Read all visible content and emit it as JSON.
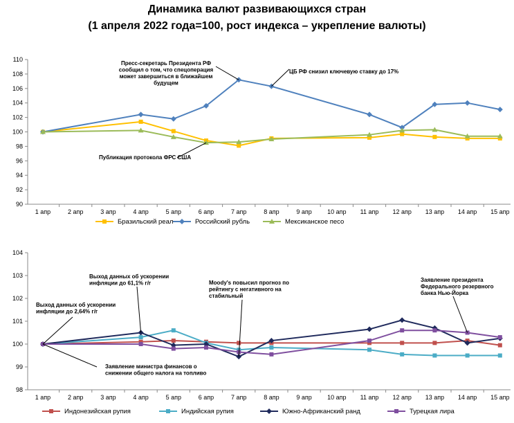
{
  "title_line1": "Динамика валют развивающихся стран",
  "title_line2": "(1 апреля 2022 года=100, рост индекса – укрепление валюты)",
  "chart_data": [
    {
      "type": "line",
      "x": [
        "1 апр",
        "2 апр",
        "3 апр",
        "4 апр",
        "5 апр",
        "6 апр",
        "7 апр",
        "8 апр",
        "9 апр",
        "10 апр",
        "11 апр",
        "12 апр",
        "13 апр",
        "14 апр",
        "15 апр"
      ],
      "ylim": [
        90,
        110
      ],
      "yticks": [
        90,
        92,
        94,
        96,
        98,
        100,
        102,
        104,
        106,
        108,
        110
      ],
      "legend_position": "bottom",
      "grid": false,
      "series": [
        {
          "name": "Бразильский реал",
          "color": "#FFC000",
          "marker": "square",
          "values": [
            100,
            null,
            null,
            101.4,
            100.1,
            98.8,
            98.1,
            99.1,
            null,
            null,
            99.2,
            99.7,
            99.3,
            99.1,
            99.1
          ]
        },
        {
          "name": "Российский рубль",
          "color": "#4F81BD",
          "marker": "diamond",
          "values": [
            100,
            null,
            null,
            102.4,
            101.8,
            103.6,
            107.2,
            106.3,
            null,
            null,
            102.4,
            100.6,
            103.8,
            104.0,
            103.1
          ]
        },
        {
          "name": "Мексиканское песо",
          "color": "#9BBB59",
          "marker": "triangle",
          "values": [
            100,
            null,
            null,
            100.2,
            99.3,
            98.5,
            98.6,
            99.0,
            null,
            null,
            99.6,
            100.2,
            100.3,
            99.4,
            99.4
          ]
        }
      ],
      "annotations": [
        {
          "lines": [
            "Пресс-секретарь Президента РФ",
            "сообщил о том, что спецоперация",
            "может завершиться в ближайшем",
            "будущем"
          ],
          "x": "7 апр",
          "y": 107.2
        },
        {
          "lines": [
            "ЦБ РФ снизил ключевую ставку до 17%"
          ],
          "x": "8 апр",
          "y": 106.3
        },
        {
          "lines": [
            "Публикация протокола ФРС США"
          ],
          "x": "6 апр",
          "y": 98.5
        }
      ]
    },
    {
      "type": "line",
      "x": [
        "1 апр",
        "2 апр",
        "3 апр",
        "4 апр",
        "5 апр",
        "6 апр",
        "7 апр",
        "8 апр",
        "9 апр",
        "10 апр",
        "11 апр",
        "12 апр",
        "13 апр",
        "14 апр",
        "15 апр"
      ],
      "ylim": [
        98,
        104
      ],
      "yticks": [
        98,
        99,
        100,
        101,
        102,
        103,
        104
      ],
      "legend_position": "bottom",
      "grid": false,
      "series": [
        {
          "name": "Индонезийская рупия",
          "color": "#C0504D",
          "marker": "square",
          "values": [
            100,
            null,
            null,
            100.1,
            100.15,
            100.1,
            100.05,
            100.05,
            null,
            null,
            100.05,
            100.05,
            100.05,
            100.15,
            99.95
          ]
        },
        {
          "name": "Индийская рупия",
          "color": "#4BACC6",
          "marker": "square",
          "values": [
            100,
            null,
            null,
            100.3,
            100.6,
            100.05,
            99.75,
            99.85,
            null,
            null,
            99.75,
            99.55,
            99.5,
            99.5,
            99.5
          ]
        },
        {
          "name": "Южно-Африканский ранд",
          "color": "#1F2A5C",
          "marker": "diamond",
          "values": [
            100,
            null,
            null,
            100.5,
            99.95,
            100.0,
            99.45,
            100.15,
            null,
            null,
            100.65,
            101.05,
            100.7,
            100.05,
            100.25
          ]
        },
        {
          "name": "Турецкая лира",
          "color": "#7F4F9F",
          "marker": "square",
          "values": [
            100,
            null,
            null,
            100.0,
            99.8,
            99.85,
            99.65,
            99.55,
            null,
            null,
            100.15,
            100.6,
            100.6,
            100.5,
            100.3
          ]
        }
      ],
      "annotations": [
        {
          "lines": [
            "Выход данных об ускорении",
            "инфляции до 2,64% г/г"
          ],
          "x": "1 апр",
          "y": 100
        },
        {
          "lines": [
            "Выход данных об ускорении",
            "инфляции до 61,1% г/г"
          ],
          "x": "4 апр",
          "y": 100.5
        },
        {
          "lines": [
            "Moody's повысил прогноз по",
            "рейтингу с негативного на",
            "стабильный"
          ],
          "x": "7 апр",
          "y": 99.45
        },
        {
          "lines": [
            "Заявление министра финансов о",
            "снижении общего налога на топливо"
          ],
          "x": "1 апр",
          "y": 100
        },
        {
          "lines": [
            "Заявление президента",
            "Федерального резервного",
            "банка Нью-Йорка"
          ],
          "x": "14 апр",
          "y": 100.5
        }
      ]
    }
  ]
}
